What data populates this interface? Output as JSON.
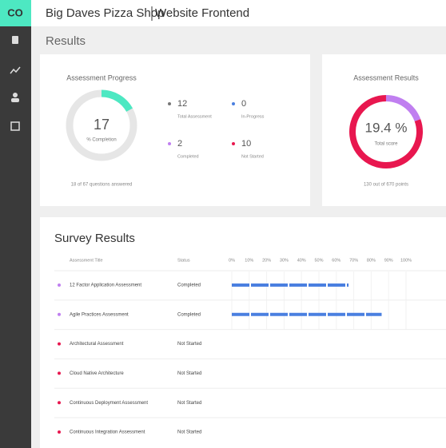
{
  "logo": "CO",
  "header": {
    "title": "Big Daves Pizza Shop",
    "subtitle": "Website Frontend"
  },
  "section_title": "Results",
  "progress": {
    "title": "Assessment Progress",
    "percent": 17,
    "percent_label": "% Completion",
    "footer": "18 of 67 questions answered",
    "ring_color": "#4de8c2",
    "stats": [
      {
        "value": "12",
        "label": "Total Assessment",
        "color": "#777777"
      },
      {
        "value": "0",
        "label": "In-Progress",
        "color": "#4a7fe0"
      },
      {
        "value": "2",
        "label": "Completed",
        "color": "#c07ff0"
      },
      {
        "value": "10",
        "label": "Not Started",
        "color": "#e8174f"
      }
    ]
  },
  "results": {
    "title": "Assessment Results",
    "score": {
      "value": 19.4,
      "label": "19.4 %"
    },
    "score_label": "Total score",
    "footer": "130 out of 670 points",
    "score_color": "#c07ff0",
    "rest_color": "#e8174f"
  },
  "survey": {
    "title": "Survey Results",
    "headers": [
      "Assessment Title",
      "Status"
    ],
    "bar_color": "#4a7fe0",
    "ticks": [
      {
        "value": 0,
        "label": "0%"
      },
      {
        "value": 10,
        "label": "10%"
      },
      {
        "value": 20,
        "label": "20%"
      },
      {
        "value": 30,
        "label": "30%"
      },
      {
        "value": 40,
        "label": "40%"
      },
      {
        "value": 50,
        "label": "50%"
      },
      {
        "value": 60,
        "label": "60%"
      },
      {
        "value": 70,
        "label": "70%"
      },
      {
        "value": 80,
        "label": "80%"
      },
      {
        "value": 90,
        "label": "90%"
      },
      {
        "value": 100,
        "label": "100%"
      }
    ],
    "rows": [
      {
        "title": "12 Factor Application Assessment",
        "status": "Completed",
        "color": "#c07ff0",
        "progress": 67
      },
      {
        "title": "Agile Practices Assessment",
        "status": "Completed",
        "color": "#c07ff0",
        "progress": 86
      },
      {
        "title": "Architectural Assessment",
        "status": "Not Started",
        "color": "#e8174f"
      },
      {
        "title": "Cloud Native Architecture",
        "status": "Not Started",
        "color": "#e8174f"
      },
      {
        "title": "Continuous Deployment Assessment",
        "status": "Not Started",
        "color": "#e8174f"
      },
      {
        "title": "Continuous Integration Assessment",
        "status": "Not Started",
        "color": "#e8174f"
      }
    ]
  }
}
